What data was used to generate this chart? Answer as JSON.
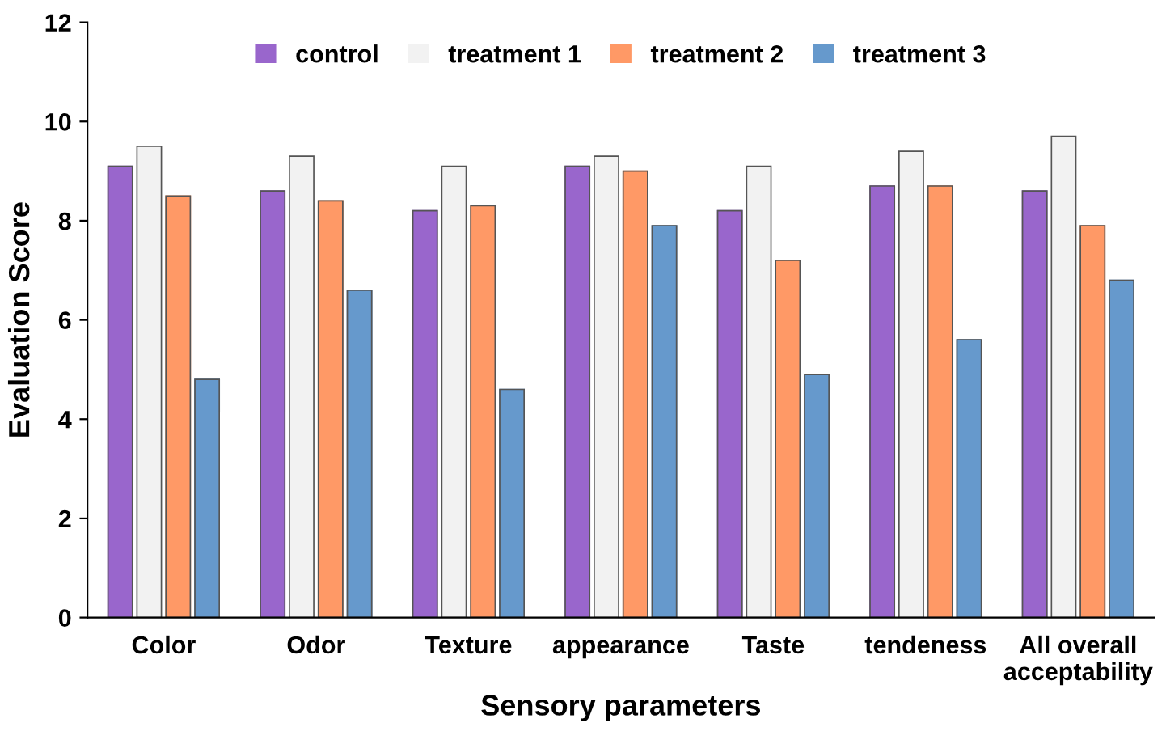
{
  "chart_data": {
    "type": "bar",
    "xlabel": "Sensory parameters",
    "ylabel": "Evaluation Score",
    "categories": [
      "Color",
      "Odor",
      "Texture",
      "appearance",
      "Taste",
      "tendeness",
      "All overall\nacceptability"
    ],
    "series": [
      {
        "name": "control",
        "color": "#9966cc",
        "values": [
          9.1,
          8.6,
          8.2,
          9.1,
          8.2,
          8.7,
          8.6
        ]
      },
      {
        "name": "treatment 1",
        "color": "#f2f2f2",
        "values": [
          9.5,
          9.3,
          9.1,
          9.3,
          9.1,
          9.4,
          9.7
        ]
      },
      {
        "name": "treatment 2",
        "color": "#ff9966",
        "values": [
          8.5,
          8.4,
          8.3,
          9.0,
          7.2,
          8.7,
          7.9
        ]
      },
      {
        "name": "treatment 3",
        "color": "#6699cc",
        "values": [
          4.8,
          6.6,
          4.6,
          7.9,
          4.9,
          5.6,
          6.8
        ]
      }
    ],
    "ylim": [
      0,
      12
    ],
    "yticks": [
      0,
      2,
      4,
      6,
      8,
      10,
      12
    ],
    "grid": false,
    "legend": "top"
  }
}
